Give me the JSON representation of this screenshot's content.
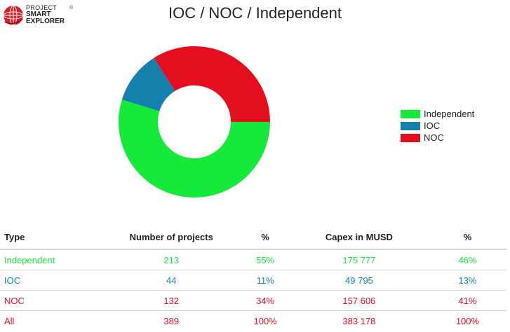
{
  "logo": {
    "line1": "PROJECT",
    "line2": "SMART",
    "line3": "EXPLORER",
    "reg": "®"
  },
  "colors": {
    "Independent": "#15ea3a",
    "IOC": "#1680ad",
    "NOC": "#e40e1e",
    "All": "#e40e1e"
  },
  "chart_data": {
    "type": "pie",
    "title": "IOC / NOC / Independent",
    "donut": true,
    "legend_position": "right",
    "categories": [
      "Independent",
      "IOC",
      "NOC"
    ],
    "values": [
      213,
      44,
      132
    ],
    "percent": [
      55,
      11,
      34
    ],
    "colors": [
      "#15ea3a",
      "#1680ad",
      "#e40e1e"
    ],
    "start_angle_deg": 90
  },
  "table": {
    "headers": [
      "Type",
      "Number of projects",
      "%",
      "Capex in MUSD",
      "%"
    ],
    "rows": [
      {
        "type": "Independent",
        "projects": "213",
        "projects_pct": "55%",
        "capex": "175 777",
        "capex_pct": "46%"
      },
      {
        "type": "IOC",
        "projects": "44",
        "projects_pct": "11%",
        "capex": "49 795",
        "capex_pct": "13%"
      },
      {
        "type": "NOC",
        "projects": "132",
        "projects_pct": "34%",
        "capex": "157 606",
        "capex_pct": "41%"
      },
      {
        "type": "All",
        "projects": "389",
        "projects_pct": "100%",
        "capex": "383 178",
        "capex_pct": "100%"
      }
    ]
  }
}
